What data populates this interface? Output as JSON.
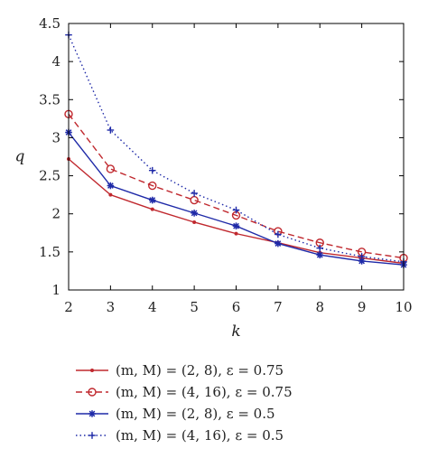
{
  "chart_data": {
    "type": "line",
    "xlabel": "k",
    "ylabel": "q",
    "xlim": [
      2,
      10
    ],
    "ylim": [
      1,
      4.5
    ],
    "xticks": [
      "2",
      "3",
      "4",
      "5",
      "6",
      "7",
      "8",
      "9",
      "10"
    ],
    "yticks": [
      "1",
      "1.5",
      "2",
      "2.5",
      "3",
      "3.5",
      "4",
      "4.5"
    ],
    "grid": false,
    "legend_position": "bottom",
    "x": [
      2,
      3,
      4,
      5,
      6,
      7,
      8,
      9,
      10
    ],
    "series": [
      {
        "name": "(m, M) = (2, 8), ε = 0.75",
        "color": "#c0282e",
        "line_style": "solid",
        "marker": "dot",
        "values": [
          2.72,
          2.25,
          2.06,
          1.89,
          1.74,
          1.62,
          1.49,
          1.42,
          1.35
        ]
      },
      {
        "name": "(m, M) = (4, 16), ε = 0.75",
        "color": "#c0282e",
        "line_style": "dashed",
        "marker": "circle",
        "values": [
          3.31,
          2.59,
          2.37,
          2.18,
          1.98,
          1.77,
          1.62,
          1.5,
          1.42
        ]
      },
      {
        "name": "(m, M) = (2, 8), ε = 0.5",
        "color": "#1f2aa8",
        "line_style": "solid",
        "marker": "star",
        "values": [
          3.07,
          2.37,
          2.18,
          2.01,
          1.84,
          1.61,
          1.46,
          1.38,
          1.33
        ]
      },
      {
        "name": "(m, M) = (4, 16), ε = 0.5",
        "color": "#1f2aa8",
        "line_style": "dotted",
        "marker": "plus",
        "values": [
          4.35,
          3.1,
          2.57,
          2.27,
          2.05,
          1.73,
          1.55,
          1.44,
          1.37
        ]
      }
    ]
  }
}
